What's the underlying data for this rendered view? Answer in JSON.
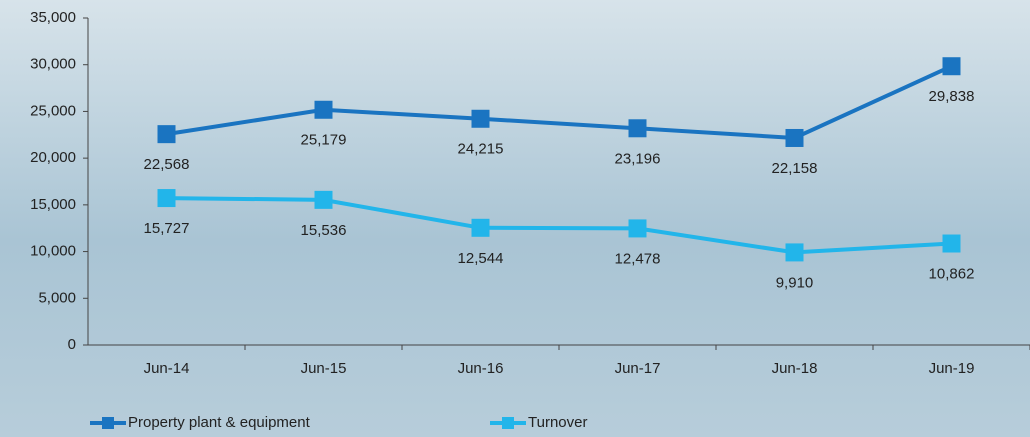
{
  "chart_data": {
    "type": "line",
    "categories": [
      "Jun-14",
      "Jun-15",
      "Jun-16",
      "Jun-17",
      "Jun-18",
      "Jun-19"
    ],
    "series": [
      {
        "name": "Property plant & equipment",
        "color": "#1a74c1",
        "values": [
          22568,
          25179,
          24215,
          23196,
          22158,
          29838
        ],
        "value_labels": [
          "22,568",
          "25,179",
          "24,215",
          "23,196",
          "22,158",
          "29,838"
        ]
      },
      {
        "name": "Turnover",
        "color": "#22b5ea",
        "values": [
          15727,
          15536,
          12544,
          12478,
          9910,
          10862
        ],
        "value_labels": [
          "15,727",
          "15,536",
          "12,544",
          "12,478",
          "9,910",
          "10,862"
        ]
      }
    ],
    "ylim": [
      0,
      35000
    ],
    "yticks": [
      0,
      {
        "value": 5000,
        "label": "5,000"
      },
      {
        "value": 10000,
        "label": "10,000"
      },
      {
        "value": 15000,
        "label": "15,000"
      },
      {
        "value": 20000,
        "label": "20,000"
      },
      {
        "value": 25000,
        "label": "25,000"
      },
      {
        "value": 30000,
        "label": "30,000"
      },
      {
        "value": 35000,
        "label": "35,000"
      }
    ],
    "legend": "bottom-left"
  }
}
